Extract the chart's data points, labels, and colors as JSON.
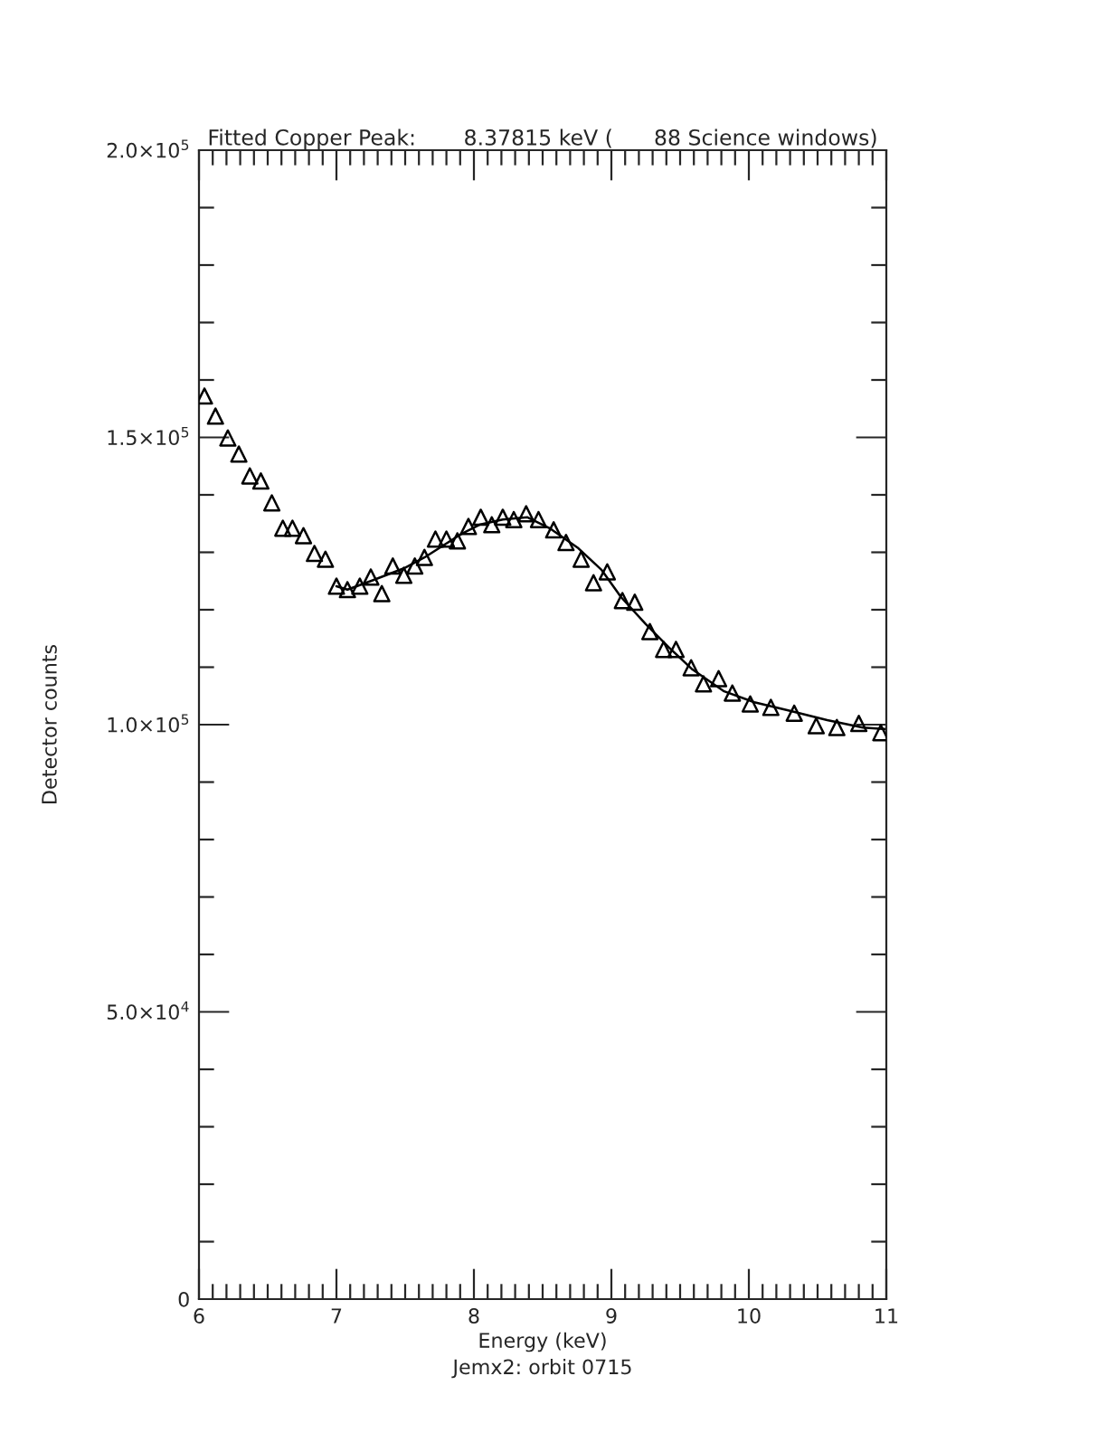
{
  "chart_data": {
    "type": "scatter",
    "title": "Fitted Copper Peak:       8.37815 keV (      88 Science windows)",
    "xlabel": "Energy (keV)",
    "ylabel": "Detector counts",
    "annotations": [
      "Jemx2: orbit 0715"
    ],
    "series": [
      {
        "color": "#000000",
        "marker": "triangle",
        "x": [
          6.04,
          6.12,
          6.21,
          6.29,
          6.37,
          6.45,
          6.53,
          6.61,
          6.68,
          6.76,
          6.84,
          6.92,
          7.0,
          7.08,
          7.17,
          7.25,
          7.33,
          7.41,
          7.49,
          7.57,
          7.64,
          7.72,
          7.8,
          7.88,
          7.96,
          8.05,
          8.13,
          8.21,
          8.29,
          8.38,
          8.47,
          8.58,
          8.67,
          8.78,
          8.87,
          8.97,
          9.08,
          9.17,
          9.28,
          9.38,
          9.47,
          9.58,
          9.67,
          9.78,
          9.88,
          10.01,
          10.16,
          10.33,
          10.49,
          10.64,
          10.8,
          10.96
        ],
        "values": [
          157200,
          153700,
          149900,
          147100,
          143300,
          142400,
          138600,
          134200,
          134200,
          132900,
          129800,
          128800,
          124100,
          123500,
          124100,
          125700,
          122800,
          127600,
          126000,
          127600,
          129100,
          132300,
          132300,
          132000,
          134500,
          136100,
          134800,
          136100,
          135700,
          136700,
          135700,
          133900,
          131700,
          128800,
          124700,
          126600,
          121600,
          121300,
          116200,
          113100,
          113100,
          109900,
          107100,
          108000,
          105500,
          103600,
          103000,
          102000,
          99800,
          99500,
          100200,
          98600
        ]
      },
      {
        "type": "line",
        "color": "#000000",
        "marker": "none",
        "line_style": "solid",
        "x": [
          7.0,
          7.08,
          7.25,
          7.49,
          7.64,
          7.91,
          8.04,
          8.21,
          8.39,
          8.55,
          8.76,
          8.93,
          9.07,
          9.25,
          9.42,
          9.59,
          9.82,
          10.04,
          10.3,
          10.57,
          10.83,
          11.0
        ],
        "values": [
          124100,
          123500,
          125000,
          127200,
          129100,
          133200,
          134800,
          135700,
          136100,
          134200,
          130700,
          126900,
          122200,
          117500,
          113400,
          109600,
          105800,
          103900,
          102400,
          100800,
          99500,
          99200
        ]
      }
    ],
    "xlim": [
      6,
      11
    ],
    "ylim": [
      0,
      200000
    ],
    "xticks": [
      6,
      {
        "value": 6.1,
        "label": null
      },
      {
        "value": 6.2,
        "label": null
      },
      {
        "value": 6.3,
        "label": null
      },
      {
        "value": 6.4,
        "label": null
      },
      {
        "value": 6.5,
        "label": null
      },
      {
        "value": 6.6,
        "label": null
      },
      {
        "value": 6.7,
        "label": null
      },
      {
        "value": 6.8,
        "label": null
      },
      {
        "value": 6.9,
        "label": null
      },
      7,
      {
        "value": 7.1,
        "label": null
      },
      {
        "value": 7.2,
        "label": null
      },
      {
        "value": 7.3,
        "label": null
      },
      {
        "value": 7.4,
        "label": null
      },
      {
        "value": 7.5,
        "label": null
      },
      {
        "value": 7.6,
        "label": null
      },
      {
        "value": 7.7,
        "label": null
      },
      {
        "value": 7.8,
        "label": null
      },
      {
        "value": 7.9,
        "label": null
      },
      8,
      {
        "value": 8.1,
        "label": null
      },
      {
        "value": 8.2,
        "label": null
      },
      {
        "value": 8.3,
        "label": null
      },
      {
        "value": 8.4,
        "label": null
      },
      {
        "value": 8.5,
        "label": null
      },
      {
        "value": 8.6,
        "label": null
      },
      {
        "value": 8.7,
        "label": null
      },
      {
        "value": 8.8,
        "label": null
      },
      {
        "value": 8.9,
        "label": null
      },
      9,
      {
        "value": 9.1,
        "label": null
      },
      {
        "value": 9.2,
        "label": null
      },
      {
        "value": 9.3,
        "label": null
      },
      {
        "value": 9.4,
        "label": null
      },
      {
        "value": 9.5,
        "label": null
      },
      {
        "value": 9.6,
        "label": null
      },
      {
        "value": 9.7,
        "label": null
      },
      {
        "value": 9.8,
        "label": null
      },
      {
        "value": 9.9,
        "label": null
      },
      10,
      {
        "value": 10.1,
        "label": null
      },
      {
        "value": 10.2,
        "label": null
      },
      {
        "value": 10.3,
        "label": null
      },
      {
        "value": 10.4,
        "label": null
      },
      {
        "value": 10.5,
        "label": null
      },
      {
        "value": 10.6,
        "label": null
      },
      {
        "value": 10.7,
        "label": null
      },
      {
        "value": 10.8,
        "label": null
      },
      {
        "value": 10.9,
        "label": null
      },
      11
    ],
    "yticks": [
      0,
      {
        "value": 10000,
        "label": null
      },
      {
        "value": 20000,
        "label": null
      },
      {
        "value": 30000,
        "label": null
      },
      {
        "value": 40000,
        "label": null
      },
      {
        "value": 50000,
        "label": "5.0×10$^{4}$"
      },
      {
        "value": 60000,
        "label": null
      },
      {
        "value": 70000,
        "label": null
      },
      {
        "value": 80000,
        "label": null
      },
      {
        "value": 90000,
        "label": null
      },
      {
        "value": 100000,
        "label": "1.0×10$^{5}$"
      },
      {
        "value": 110000,
        "label": null
      },
      {
        "value": 120000,
        "label": null
      },
      {
        "value": 130000,
        "label": null
      },
      {
        "value": 140000,
        "label": null
      },
      {
        "value": 150000,
        "label": "1.5×10$^{5}$"
      },
      {
        "value": 160000,
        "label": null
      },
      {
        "value": 170000,
        "label": null
      },
      {
        "value": 180000,
        "label": null
      },
      {
        "value": 190000,
        "label": null
      },
      {
        "value": 200000,
        "label": "2.0×10$^{5}$"
      }
    ],
    "grid": false,
    "legend": false
  }
}
